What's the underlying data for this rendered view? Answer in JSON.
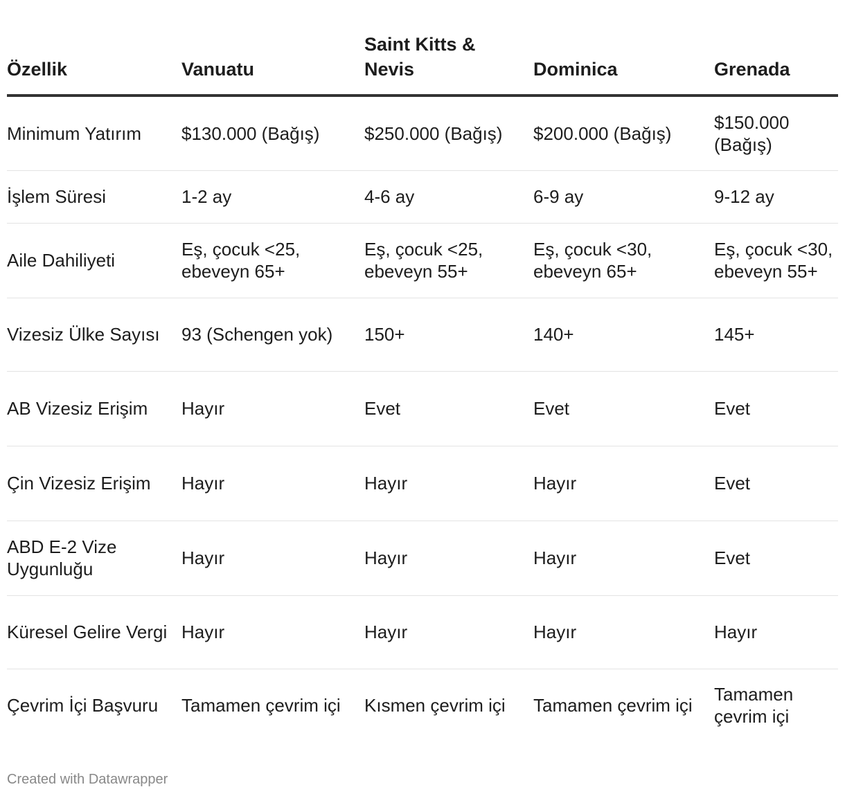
{
  "chart_data": {
    "type": "table",
    "columns": [
      "Özellik",
      "Vanuatu",
      "Saint Kitts & Nevis",
      "Dominica",
      "Grenada"
    ],
    "rows": [
      [
        "Minimum Yatırım",
        "$130.000 (Bağış)",
        "$250.000 (Bağış)",
        "$200.000 (Bağış)",
        "$150.000 (Bağış)"
      ],
      [
        "İşlem Süresi",
        "1-2 ay",
        "4-6 ay",
        "6-9 ay",
        "9-12 ay"
      ],
      [
        "Aile Dahiliyeti",
        "Eş, çocuk <25, ebeveyn 65+",
        "Eş, çocuk <25, ebeveyn 55+",
        "Eş, çocuk <30, ebeveyn 65+",
        "Eş, çocuk <30, ebeveyn 55+"
      ],
      [
        "Vizesiz Ülke Sayısı",
        "93 (Schengen yok)",
        "150+",
        "140+",
        "145+"
      ],
      [
        "AB Vizesiz Erişim",
        "Hayır",
        "Evet",
        "Evet",
        "Evet"
      ],
      [
        "Çin Vizesiz Erişim",
        "Hayır",
        "Hayır",
        "Hayır",
        "Evet"
      ],
      [
        "ABD E-2 Vize Uygunluğu",
        "Hayır",
        "Hayır",
        "Hayır",
        "Evet"
      ],
      [
        "Küresel Gelire Vergi",
        "Hayır",
        "Hayır",
        "Hayır",
        "Hayır"
      ],
      [
        "Çevrim İçi Başvuru",
        "Tamamen çevrim içi",
        "Kısmen çevrim içi",
        "Tamamen çevrim içi",
        "Tamamen çevrim içi"
      ]
    ]
  },
  "footer": {
    "credit": "Created with Datawrapper"
  },
  "colors": {
    "text": "#1d1d1d",
    "header_rule": "#333333",
    "row_divider": "#e3e3e3",
    "footer_text": "#888888"
  }
}
